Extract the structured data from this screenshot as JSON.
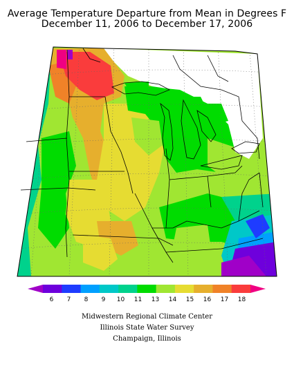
{
  "title": {
    "line1": "Average Temperature Departure from Mean in Degrees F",
    "line2": "December 11, 2006 to December 17, 2006"
  },
  "legend": {
    "ticks": [
      "6",
      "7",
      "8",
      "9",
      "10",
      "11",
      "13",
      "14",
      "15",
      "16",
      "17",
      "18"
    ],
    "colors": [
      "#a000c8",
      "#6e00dc",
      "#1e3cff",
      "#00a0ff",
      "#00c8c8",
      "#00d28c",
      "#00dc00",
      "#a0e632",
      "#e6dc32",
      "#e6af2d",
      "#f08228",
      "#fa3c3c",
      "#f00082"
    ]
  },
  "credits": {
    "line1": "Midwestern Regional Climate Center",
    "line2": "Illinois State Water Survey",
    "line3": "Champaign, Illinois"
  }
}
